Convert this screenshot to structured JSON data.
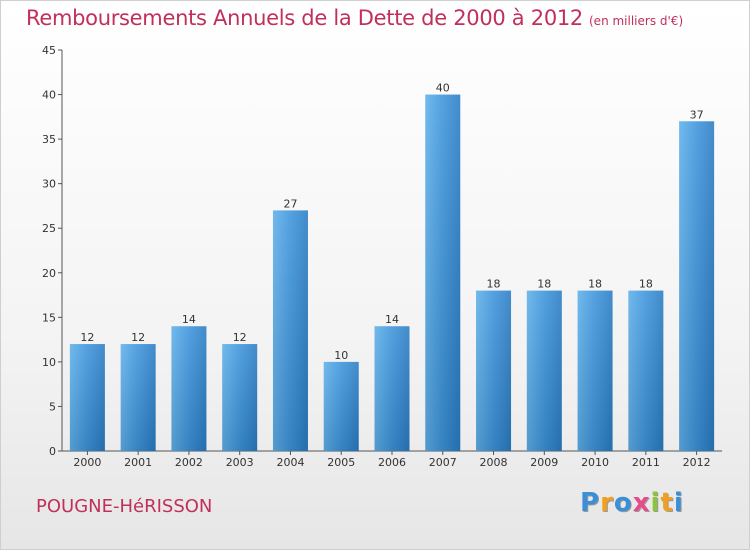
{
  "title": "Remboursements Annuels de la Dette de 2000 à 2012",
  "unit": "(en milliers d'€)",
  "commune": "POUGNE-HéRISSON",
  "logo": {
    "letters": [
      "P",
      "r",
      "o",
      "x",
      "i",
      "t",
      "i"
    ],
    "colors": [
      "#3a8fd6",
      "#f0a020",
      "#3a8fd6",
      "#e84a8a",
      "#8cc43c",
      "#f0a020",
      "#3a8fd6"
    ]
  },
  "colors": {
    "bar": "#3b8fd8",
    "title": "#c0305a"
  },
  "chart_data": {
    "type": "bar",
    "title": "Remboursements Annuels de la Dette de 2000 à 2012",
    "categories": [
      "2000",
      "2001",
      "2002",
      "2003",
      "2004",
      "2005",
      "2006",
      "2007",
      "2008",
      "2009",
      "2010",
      "2011",
      "2012"
    ],
    "values": [
      12,
      12,
      14,
      12,
      27,
      10,
      14,
      40,
      18,
      18,
      18,
      18,
      37
    ],
    "ylim": [
      0,
      45
    ],
    "yticks": [
      0,
      5,
      10,
      15,
      20,
      25,
      30,
      35,
      40,
      45
    ],
    "grid": false
  }
}
